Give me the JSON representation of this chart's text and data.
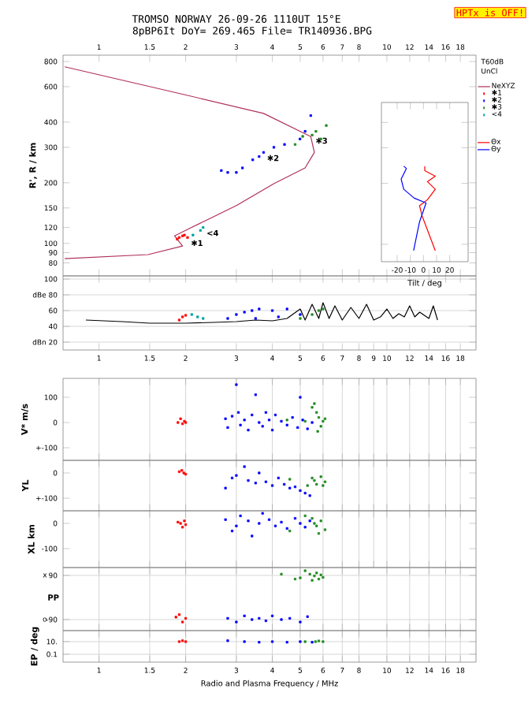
{
  "chart_data": [
    {
      "type": "scatter",
      "title": "TROMSO NORWAY 26-09-26 1110UT 15°E",
      "subtitle": "8pBP6It DoY= 269.465 File= TR140936.BPG",
      "ylabel": "R', R / km",
      "log": "xy",
      "legend": "right",
      "xlim": [
        0.75,
        20.4
      ],
      "xticks": [
        1,
        1.5,
        2,
        3,
        4,
        5,
        6,
        7,
        8,
        10,
        12,
        14,
        16,
        18
      ],
      "ylim": [
        69,
        860
      ],
      "yticks": [
        80,
        90,
        100,
        120,
        150,
        200,
        300,
        400,
        600,
        800
      ],
      "annotations": [
        "HPTx is OFF!",
        "T60dB",
        "UnCl",
        {
          "text": "✱1",
          "x": 2.03,
          "y": 107
        },
        {
          "text": "✱2",
          "x": 3.73,
          "y": 283
        },
        {
          "text": "✱3",
          "x": 5.5,
          "y": 345
        },
        {
          "text": "<4",
          "x": 2.3,
          "y": 120
        }
      ],
      "series": [
        {
          "name": "NeXYZ",
          "type": "line",
          "color": "#b0305a",
          "x": [
            0.76,
            1.99,
            3.73,
            5.44,
            5.6,
            5.2,
            4.05,
            3.02,
            2.35,
            2.07,
            1.83,
            1.95,
            1.48,
            0.76
          ],
          "values": [
            753,
            547,
            442,
            339,
            283,
            237,
            198,
            155,
            130,
            119,
            109,
            97,
            88,
            84
          ]
        },
        {
          "name": "✱1",
          "color": "#ff0000",
          "x": [
            1.87,
            1.95,
            2.03,
            1.9,
            1.98
          ],
          "values": [
            105,
            109,
            107,
            107,
            110
          ]
        },
        {
          "name": "✱2",
          "color": "#0000ff",
          "x": [
            2.66,
            2.8,
            3.15,
            3.42,
            3.73,
            4.05,
            4.41,
            4.99,
            5.2,
            5.44,
            3.0,
            3.6
          ],
          "values": [
            230,
            225,
            237,
            260,
            283,
            300,
            310,
            330,
            360,
            431,
            225,
            270
          ]
        },
        {
          "name": "✱3",
          "color": "#228b22",
          "x": [
            4.8,
            5.1,
            5.67,
            6.16,
            5.9,
            5.5
          ],
          "values": [
            310,
            340,
            360,
            385,
            330,
            345
          ]
        },
        {
          "name": "<4",
          "color": "#00a0a0",
          "x": [
            2.12,
            2.3,
            2.25
          ],
          "values": [
            110,
            120,
            116
          ]
        }
      ]
    },
    {
      "type": "line",
      "xlabel": "Tilt / deg",
      "legend": "right",
      "tick_labels": "x",
      "xlim": [
        -32,
        34
      ],
      "xticks": [
        -20,
        -10,
        0,
        10,
        20
      ],
      "ylim": [
        82,
        502
      ],
      "log": "y",
      "yticks": [
        100,
        200,
        300,
        400
      ],
      "series": [
        {
          "name": "Θx",
          "color": "#ff0000",
          "x": [
            9,
            -1,
            -3,
            3,
            9,
            3,
            9,
            1,
            1
          ],
          "values": [
            93,
            138,
            155,
            166,
            187,
            204,
            217,
            231,
            243
          ]
        },
        {
          "name": "Θy",
          "color": "#0000ff",
          "x": [
            -7.5,
            -3,
            2,
            -7,
            -15,
            -17,
            -13,
            -15
          ],
          "values": [
            93,
            129,
            160,
            169,
            187,
            210,
            237,
            243
          ]
        }
      ]
    },
    {
      "type": "scatter",
      "grid": "y",
      "log": "x",
      "xlim": [
        0.75,
        20.4
      ],
      "xticks": [
        1,
        1.5,
        2,
        3,
        4,
        5,
        6,
        7,
        8,
        9,
        10,
        12,
        14,
        16,
        18
      ],
      "ylim": [
        10,
        104
      ],
      "yticks": [
        100,
        {
          "value": 80,
          "label": "dBe 80"
        },
        60,
        40,
        {
          "value": 20,
          "label": "dBn 20"
        }
      ],
      "series": [
        {
          "type": "line",
          "color": "#000000",
          "x": [
            0.9,
            1.2,
            1.5,
            2,
            2.5,
            3,
            3.5,
            4,
            4.5,
            5,
            5.2,
            5.5,
            5.8,
            6,
            6.3,
            6.6,
            7,
            7.5,
            8,
            8.5,
            9,
            9.5,
            10,
            10.5,
            11,
            11.5,
            12,
            12.5,
            13,
            14,
            14.5,
            15
          ],
          "values": [
            48,
            46,
            44,
            44,
            45,
            46,
            48,
            47,
            50,
            62,
            48,
            68,
            50,
            70,
            50,
            66,
            48,
            64,
            50,
            68,
            48,
            52,
            62,
            50,
            56,
            52,
            66,
            52,
            58,
            50,
            66,
            48
          ]
        },
        {
          "color": "#ff0000",
          "x": [
            1.9,
            1.95,
            2.0
          ],
          "values": [
            48,
            52,
            54
          ]
        },
        {
          "color": "#00a0a0",
          "x": [
            2.1,
            2.2,
            2.3
          ],
          "values": [
            55,
            52,
            50
          ]
        },
        {
          "color": "#0000ff",
          "x": [
            2.8,
            3.0,
            3.2,
            3.5,
            3.6,
            4.0,
            4.5,
            5.0,
            3.4,
            4.2
          ],
          "values": [
            50,
            55,
            58,
            50,
            62,
            60,
            62,
            55,
            60,
            52
          ]
        },
        {
          "color": "#228b22",
          "x": [
            5.0,
            5.5,
            5.8,
            6.0
          ],
          "values": [
            50,
            55,
            60,
            62
          ]
        }
      ]
    },
    {
      "type": "scatter",
      "grid": "x",
      "log": "x",
      "tick_labels": "y",
      "ylabel": "V* m/s",
      "xlim": [
        0.75,
        20.4
      ],
      "xticks": [
        1,
        1.5,
        2,
        3,
        4,
        5,
        6,
        7,
        8,
        9,
        10,
        12,
        14,
        16,
        18
      ],
      "ylim": [
        -150,
        175
      ],
      "yticks": [
        100,
        0,
        {
          "value": -100,
          "label": "+-100"
        }
      ],
      "series": [
        {
          "color": "#ff0000",
          "x": [
            1.88,
            1.92,
            1.95,
            1.98,
            2.0
          ],
          "values": [
            0,
            15,
            -5,
            5,
            0
          ]
        },
        {
          "color": "#0000ff",
          "x": [
            2.75,
            2.8,
            2.9,
            3.0,
            3.05,
            3.1,
            3.2,
            3.3,
            3.4,
            3.5,
            3.6,
            3.7,
            3.8,
            3.9,
            4.0,
            4.1,
            4.3,
            4.5,
            4.7,
            4.9,
            5.0,
            5.1,
            5.3,
            5.5
          ],
          "values": [
            15,
            -20,
            25,
            150,
            40,
            -10,
            10,
            -30,
            30,
            110,
            0,
            -15,
            40,
            10,
            -30,
            30,
            5,
            -10,
            20,
            -20,
            100,
            10,
            -25,
            0
          ]
        },
        {
          "color": "#228b22",
          "x": [
            4.5,
            5.2,
            5.5,
            5.6,
            5.7,
            5.8,
            5.9,
            6.0,
            6.1,
            5.75
          ],
          "values": [
            10,
            5,
            60,
            75,
            40,
            20,
            -15,
            5,
            15,
            -35
          ]
        }
      ]
    },
    {
      "type": "scatter",
      "grid": "x",
      "log": "x",
      "tick_labels": "y",
      "ylabel": "YL",
      "xlim": [
        0.75,
        20.4
      ],
      "xticks": [
        1,
        1.5,
        2,
        3,
        4,
        5,
        6,
        7,
        8,
        9,
        10,
        12,
        14,
        16,
        18
      ],
      "ylim": [
        -150,
        50
      ],
      "yticks": [
        0,
        {
          "value": -100,
          "label": "+-100"
        }
      ],
      "series": [
        {
          "color": "#ff0000",
          "x": [
            1.9,
            1.94,
            1.97,
            2.0
          ],
          "values": [
            5,
            10,
            0,
            -5
          ]
        },
        {
          "color": "#0000ff",
          "x": [
            2.75,
            2.9,
            3.0,
            3.2,
            3.3,
            3.5,
            3.6,
            3.8,
            4.0,
            4.2,
            4.4,
            4.6,
            4.8,
            5.0,
            5.2,
            5.4
          ],
          "values": [
            -60,
            -20,
            -10,
            25,
            -30,
            -40,
            0,
            -35,
            -50,
            -20,
            -45,
            -60,
            -55,
            -70,
            -80,
            -90
          ]
        },
        {
          "color": "#228b22",
          "x": [
            4.6,
            5.3,
            5.5,
            5.6,
            5.7,
            5.9,
            6.0,
            6.1
          ],
          "values": [
            -25,
            -50,
            -20,
            -30,
            -45,
            -15,
            -50,
            -35
          ]
        }
      ]
    },
    {
      "type": "scatter",
      "grid": "x",
      "log": "x",
      "tick_labels": "y",
      "ylabel": "XL   km",
      "xlim": [
        0.75,
        20.4
      ],
      "xticks": [
        1,
        1.5,
        2,
        3,
        4,
        5,
        6,
        7,
        8,
        9,
        10,
        12,
        14,
        16,
        18
      ],
      "ylim": [
        -175,
        50
      ],
      "yticks": [
        0,
        -100
      ],
      "series": [
        {
          "color": "#ff0000",
          "x": [
            1.88,
            1.92,
            1.95,
            1.98,
            2.0
          ],
          "values": [
            5,
            0,
            -15,
            10,
            -5
          ]
        },
        {
          "color": "#0000ff",
          "x": [
            2.75,
            2.9,
            3.0,
            3.1,
            3.3,
            3.4,
            3.6,
            3.7,
            3.9,
            4.1,
            4.3,
            4.5,
            4.8,
            5.0,
            5.2,
            5.4
          ],
          "values": [
            15,
            -30,
            -10,
            30,
            10,
            -50,
            0,
            40,
            15,
            -10,
            5,
            -20,
            20,
            0,
            -15,
            10
          ]
        },
        {
          "color": "#228b22",
          "x": [
            4.6,
            5.2,
            5.5,
            5.6,
            5.7,
            5.8,
            5.9,
            6.1
          ],
          "values": [
            -30,
            30,
            20,
            0,
            -10,
            -40,
            10,
            -25
          ]
        }
      ]
    },
    {
      "type": "scatter",
      "grid": true,
      "log": "x",
      "tick_labels": "y",
      "annotations": [
        "PP",
        "x",
        "o"
      ],
      "xlim": [
        0.75,
        20.4
      ],
      "xticks": [
        1,
        1.5,
        2,
        3,
        4,
        5,
        6,
        7,
        8,
        10,
        12,
        14,
        16,
        18
      ],
      "ylim": [
        -135,
        122
      ],
      "yticks": [
        90,
        -90
      ],
      "series": [
        {
          "color": "#ff0000",
          "x": [
            1.85,
            1.9,
            1.95,
            2.0
          ],
          "values": [
            -80,
            -70,
            -100,
            -85
          ]
        },
        {
          "color": "#0000ff",
          "x": [
            2.8,
            3.0,
            3.2,
            3.4,
            3.6,
            3.8,
            4.0,
            4.3,
            4.6,
            5.0,
            5.3
          ],
          "values": [
            -85,
            -100,
            -75,
            -90,
            -85,
            -95,
            -75,
            -90,
            -85,
            -100,
            -78
          ]
        },
        {
          "color": "#228b22",
          "x": [
            4.3,
            4.8,
            5.0,
            5.2,
            5.4,
            5.5,
            5.6,
            5.7,
            5.8,
            5.9,
            6.0
          ],
          "values": [
            95,
            75,
            80,
            109,
            95,
            70,
            88,
            100,
            75,
            92,
            82
          ]
        }
      ]
    },
    {
      "type": "scatter",
      "grid": true,
      "log": "xy",
      "xlabel": "Radio and Plasma Frequency / MHz",
      "ylabel": "EP / deg",
      "xlim": [
        0.75,
        20.4
      ],
      "xticks": [
        1,
        1.5,
        2,
        3,
        4,
        5,
        6,
        7,
        8,
        10,
        12,
        14,
        16,
        18
      ],
      "ylim": [
        0.0056,
        562
      ],
      "yticks": [
        {
          "value": 10,
          "label": "10."
        },
        0.1
      ],
      "series": [
        {
          "color": "#ff0000",
          "x": [
            1.9,
            1.95,
            2.0
          ],
          "values": [
            10,
            14,
            10
          ]
        },
        {
          "color": "#0000ff",
          "x": [
            2.8,
            3.2,
            3.6,
            4.0,
            4.5,
            5.0,
            5.5
          ],
          "values": [
            14,
            10,
            8,
            10,
            8,
            10,
            8
          ]
        },
        {
          "color": "#228b22",
          "x": [
            5.2,
            5.65,
            5.8,
            6.0
          ],
          "values": [
            10,
            10,
            13,
            10
          ]
        }
      ]
    }
  ]
}
